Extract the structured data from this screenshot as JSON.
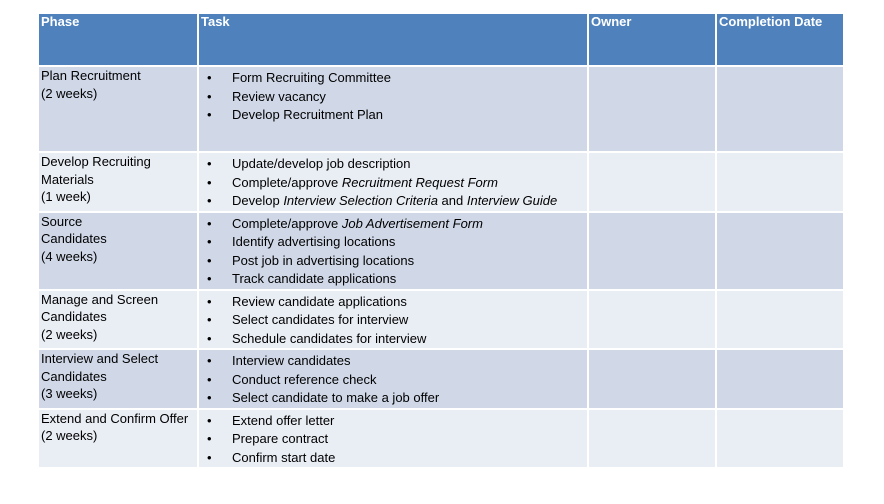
{
  "headers": [
    "Phase",
    "Task",
    "Owner",
    "Completion Date"
  ],
  "rows": [
    {
      "phase_lines": [
        "Plan Recruitment",
        "(2 weeks)"
      ],
      "tasks": [
        {
          "pre": "Form Recruiting Committee"
        },
        {
          "pre": "Review vacancy"
        },
        {
          "pre": "Develop Recruitment Plan"
        }
      ]
    },
    {
      "phase_lines": [
        "Develop Recruiting",
        "Materials",
        "(1 week)"
      ],
      "tasks": [
        {
          "pre": "Update/develop job description"
        },
        {
          "pre": "Complete/approve ",
          "em1": "Recruitment Request Form"
        },
        {
          "pre": "Develop ",
          "em1": "Interview Selection Criteria",
          "mid": " and ",
          "em2": "Interview Guide"
        }
      ]
    },
    {
      "phase_lines": [
        "Source",
        "Candidates",
        "(4 weeks)"
      ],
      "tasks": [
        {
          "pre": "Complete/approve ",
          "em1": "Job Advertisement Form"
        },
        {
          "pre": "Identify advertising locations"
        },
        {
          "pre": "Post job in advertising locations"
        },
        {
          "pre": "Track candidate applications"
        }
      ]
    },
    {
      "phase_lines": [
        "Manage and Screen",
        "Candidates",
        "(2 weeks)"
      ],
      "tasks": [
        {
          "pre": "Review candidate applications"
        },
        {
          "pre": "Select candidates for interview"
        },
        {
          "pre": "Schedule candidates for interview"
        }
      ]
    },
    {
      "phase_lines": [
        "Interview and Select",
        "Candidates",
        "(3 weeks)"
      ],
      "tasks": [
        {
          "pre": "Interview candidates"
        },
        {
          "pre": "Conduct reference check"
        },
        {
          "pre": "Select candidate to make a job offer"
        }
      ]
    },
    {
      "phase_lines": [
        "Extend and Confirm Offer",
        "(2 weeks)"
      ],
      "tasks": [
        {
          "pre": "Extend offer letter"
        },
        {
          "pre": "Prepare contract"
        },
        {
          "pre": "Confirm start date"
        }
      ]
    }
  ],
  "colors": {
    "header_bg": "#4f81bd",
    "row_dark": "#d0d8e8",
    "row_light": "#e9edf4"
  }
}
